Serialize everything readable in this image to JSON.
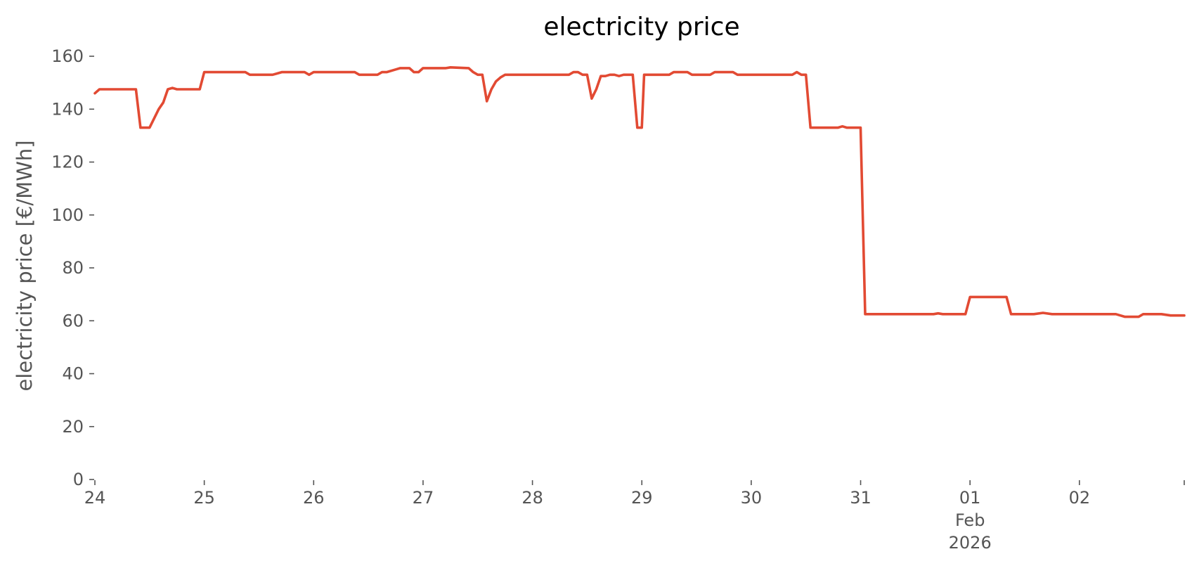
{
  "chart_data": {
    "type": "line",
    "title": "electricity price",
    "xlabel": "",
    "ylabel": "electricity price [€/MWh]",
    "ylim": [
      0,
      160
    ],
    "yticks": [
      0,
      20,
      40,
      60,
      80,
      100,
      120,
      140,
      160
    ],
    "xlim": [
      "2026-01-24 00:00",
      "2026-02-02 23:00"
    ],
    "xticks": [
      {
        "x": "2026-01-24 00:00",
        "label": "24",
        "sublabels": []
      },
      {
        "x": "2026-01-25 00:00",
        "label": "25",
        "sublabels": []
      },
      {
        "x": "2026-01-26 00:00",
        "label": "26",
        "sublabels": []
      },
      {
        "x": "2026-01-27 00:00",
        "label": "27",
        "sublabels": []
      },
      {
        "x": "2026-01-28 00:00",
        "label": "28",
        "sublabels": []
      },
      {
        "x": "2026-01-29 00:00",
        "label": "29",
        "sublabels": []
      },
      {
        "x": "2026-01-30 00:00",
        "label": "30",
        "sublabels": []
      },
      {
        "x": "2026-01-31 00:00",
        "label": "31",
        "sublabels": []
      },
      {
        "x": "2026-02-01 00:00",
        "label": "01",
        "sublabels": [
          "Feb",
          "2026"
        ]
      },
      {
        "x": "2026-02-02 00:00",
        "label": "02",
        "sublabels": []
      },
      {
        "x": "2026-02-02 23:00",
        "label": "",
        "sublabels": []
      }
    ],
    "grid": false,
    "series": [
      {
        "color": "#E24A33",
        "points": [
          [
            "2026-01-24 00:00",
            146
          ],
          [
            "2026-01-24 01:00",
            147.5
          ],
          [
            "2026-01-24 09:00",
            147.5
          ],
          [
            "2026-01-24 10:00",
            133
          ],
          [
            "2026-01-24 12:00",
            133
          ],
          [
            "2026-01-24 14:00",
            140
          ],
          [
            "2026-01-24 15:00",
            142.5
          ],
          [
            "2026-01-24 16:00",
            147.5
          ],
          [
            "2026-01-24 17:00",
            148
          ],
          [
            "2026-01-24 18:00",
            147.5
          ],
          [
            "2026-01-24 23:00",
            147.5
          ],
          [
            "2026-01-25 00:00",
            154
          ],
          [
            "2026-01-25 09:00",
            154
          ],
          [
            "2026-01-25 10:00",
            153
          ],
          [
            "2026-01-25 15:00",
            153
          ],
          [
            "2026-01-25 16:00",
            153.5
          ],
          [
            "2026-01-25 17:00",
            154
          ],
          [
            "2026-01-25 22:00",
            154
          ],
          [
            "2026-01-25 23:00",
            153
          ],
          [
            "2026-01-26 00:00",
            154
          ],
          [
            "2026-01-26 09:00",
            154
          ],
          [
            "2026-01-26 10:00",
            153
          ],
          [
            "2026-01-26 14:00",
            153
          ],
          [
            "2026-01-26 15:00",
            154
          ],
          [
            "2026-01-26 16:00",
            154
          ],
          [
            "2026-01-26 18:00",
            155
          ],
          [
            "2026-01-26 19:00",
            155.5
          ],
          [
            "2026-01-26 21:00",
            155.5
          ],
          [
            "2026-01-26 22:00",
            154
          ],
          [
            "2026-01-26 23:00",
            154
          ],
          [
            "2026-01-27 00:00",
            155.5
          ],
          [
            "2026-01-27 05:00",
            155.5
          ],
          [
            "2026-01-27 06:00",
            155.8
          ],
          [
            "2026-01-27 10:00",
            155.5
          ],
          [
            "2026-01-27 11:00",
            154
          ],
          [
            "2026-01-27 12:00",
            153
          ],
          [
            "2026-01-27 13:00",
            153
          ],
          [
            "2026-01-27 14:00",
            143
          ],
          [
            "2026-01-27 15:00",
            147.5
          ],
          [
            "2026-01-27 16:00",
            150.5
          ],
          [
            "2026-01-27 17:00",
            152
          ],
          [
            "2026-01-27 18:00",
            153
          ],
          [
            "2026-01-27 19:00",
            153
          ],
          [
            "2026-01-28 08:00",
            153
          ],
          [
            "2026-01-28 09:00",
            154
          ],
          [
            "2026-01-28 10:00",
            154
          ],
          [
            "2026-01-28 11:00",
            153
          ],
          [
            "2026-01-28 12:00",
            153
          ],
          [
            "2026-01-28 13:00",
            144
          ],
          [
            "2026-01-28 14:00",
            147.5
          ],
          [
            "2026-01-28 15:00",
            152.5
          ],
          [
            "2026-01-28 16:00",
            152.5
          ],
          [
            "2026-01-28 17:00",
            153
          ],
          [
            "2026-01-28 18:00",
            153
          ],
          [
            "2026-01-28 19:00",
            152.5
          ],
          [
            "2026-01-28 20:00",
            153
          ],
          [
            "2026-01-28 22:00",
            153
          ],
          [
            "2026-01-28 23:00",
            133
          ],
          [
            "2026-01-29 00:00",
            133
          ],
          [
            "2026-01-29 00:30",
            153
          ],
          [
            "2026-01-29 06:00",
            153
          ],
          [
            "2026-01-29 07:00",
            154
          ],
          [
            "2026-01-29 10:00",
            154
          ],
          [
            "2026-01-29 11:00",
            153
          ],
          [
            "2026-01-29 15:00",
            153
          ],
          [
            "2026-01-29 16:00",
            154
          ],
          [
            "2026-01-29 20:00",
            154
          ],
          [
            "2026-01-29 21:00",
            153
          ],
          [
            "2026-01-30 09:00",
            153
          ],
          [
            "2026-01-30 10:00",
            154
          ],
          [
            "2026-01-30 11:00",
            153
          ],
          [
            "2026-01-30 12:00",
            153
          ],
          [
            "2026-01-30 13:00",
            133
          ],
          [
            "2026-01-30 19:00",
            133
          ],
          [
            "2026-01-30 20:00",
            133.5
          ],
          [
            "2026-01-30 21:00",
            133
          ],
          [
            "2026-01-30 23:00",
            133
          ],
          [
            "2026-01-31 00:00",
            133
          ],
          [
            "2026-01-31 01:00",
            62.5
          ],
          [
            "2026-01-31 14:00",
            62.5
          ],
          [
            "2026-01-31 16:00",
            62.5
          ],
          [
            "2026-01-31 17:00",
            62.8
          ],
          [
            "2026-01-31 18:00",
            62.5
          ],
          [
            "2026-01-31 23:00",
            62.5
          ],
          [
            "2026-02-01 00:00",
            69
          ],
          [
            "2026-02-01 08:00",
            69
          ],
          [
            "2026-02-01 09:00",
            62.5
          ],
          [
            "2026-02-01 14:00",
            62.5
          ],
          [
            "2026-02-01 16:00",
            63
          ],
          [
            "2026-02-01 18:00",
            62.5
          ],
          [
            "2026-02-01 20:00",
            62.5
          ],
          [
            "2026-02-02 08:00",
            62.5
          ],
          [
            "2026-02-02 10:00",
            61.5
          ],
          [
            "2026-02-02 13:00",
            61.5
          ],
          [
            "2026-02-02 14:00",
            62.5
          ],
          [
            "2026-02-02 18:00",
            62.5
          ],
          [
            "2026-02-02 20:00",
            62
          ],
          [
            "2026-02-02 23:00",
            62
          ]
        ]
      }
    ]
  }
}
